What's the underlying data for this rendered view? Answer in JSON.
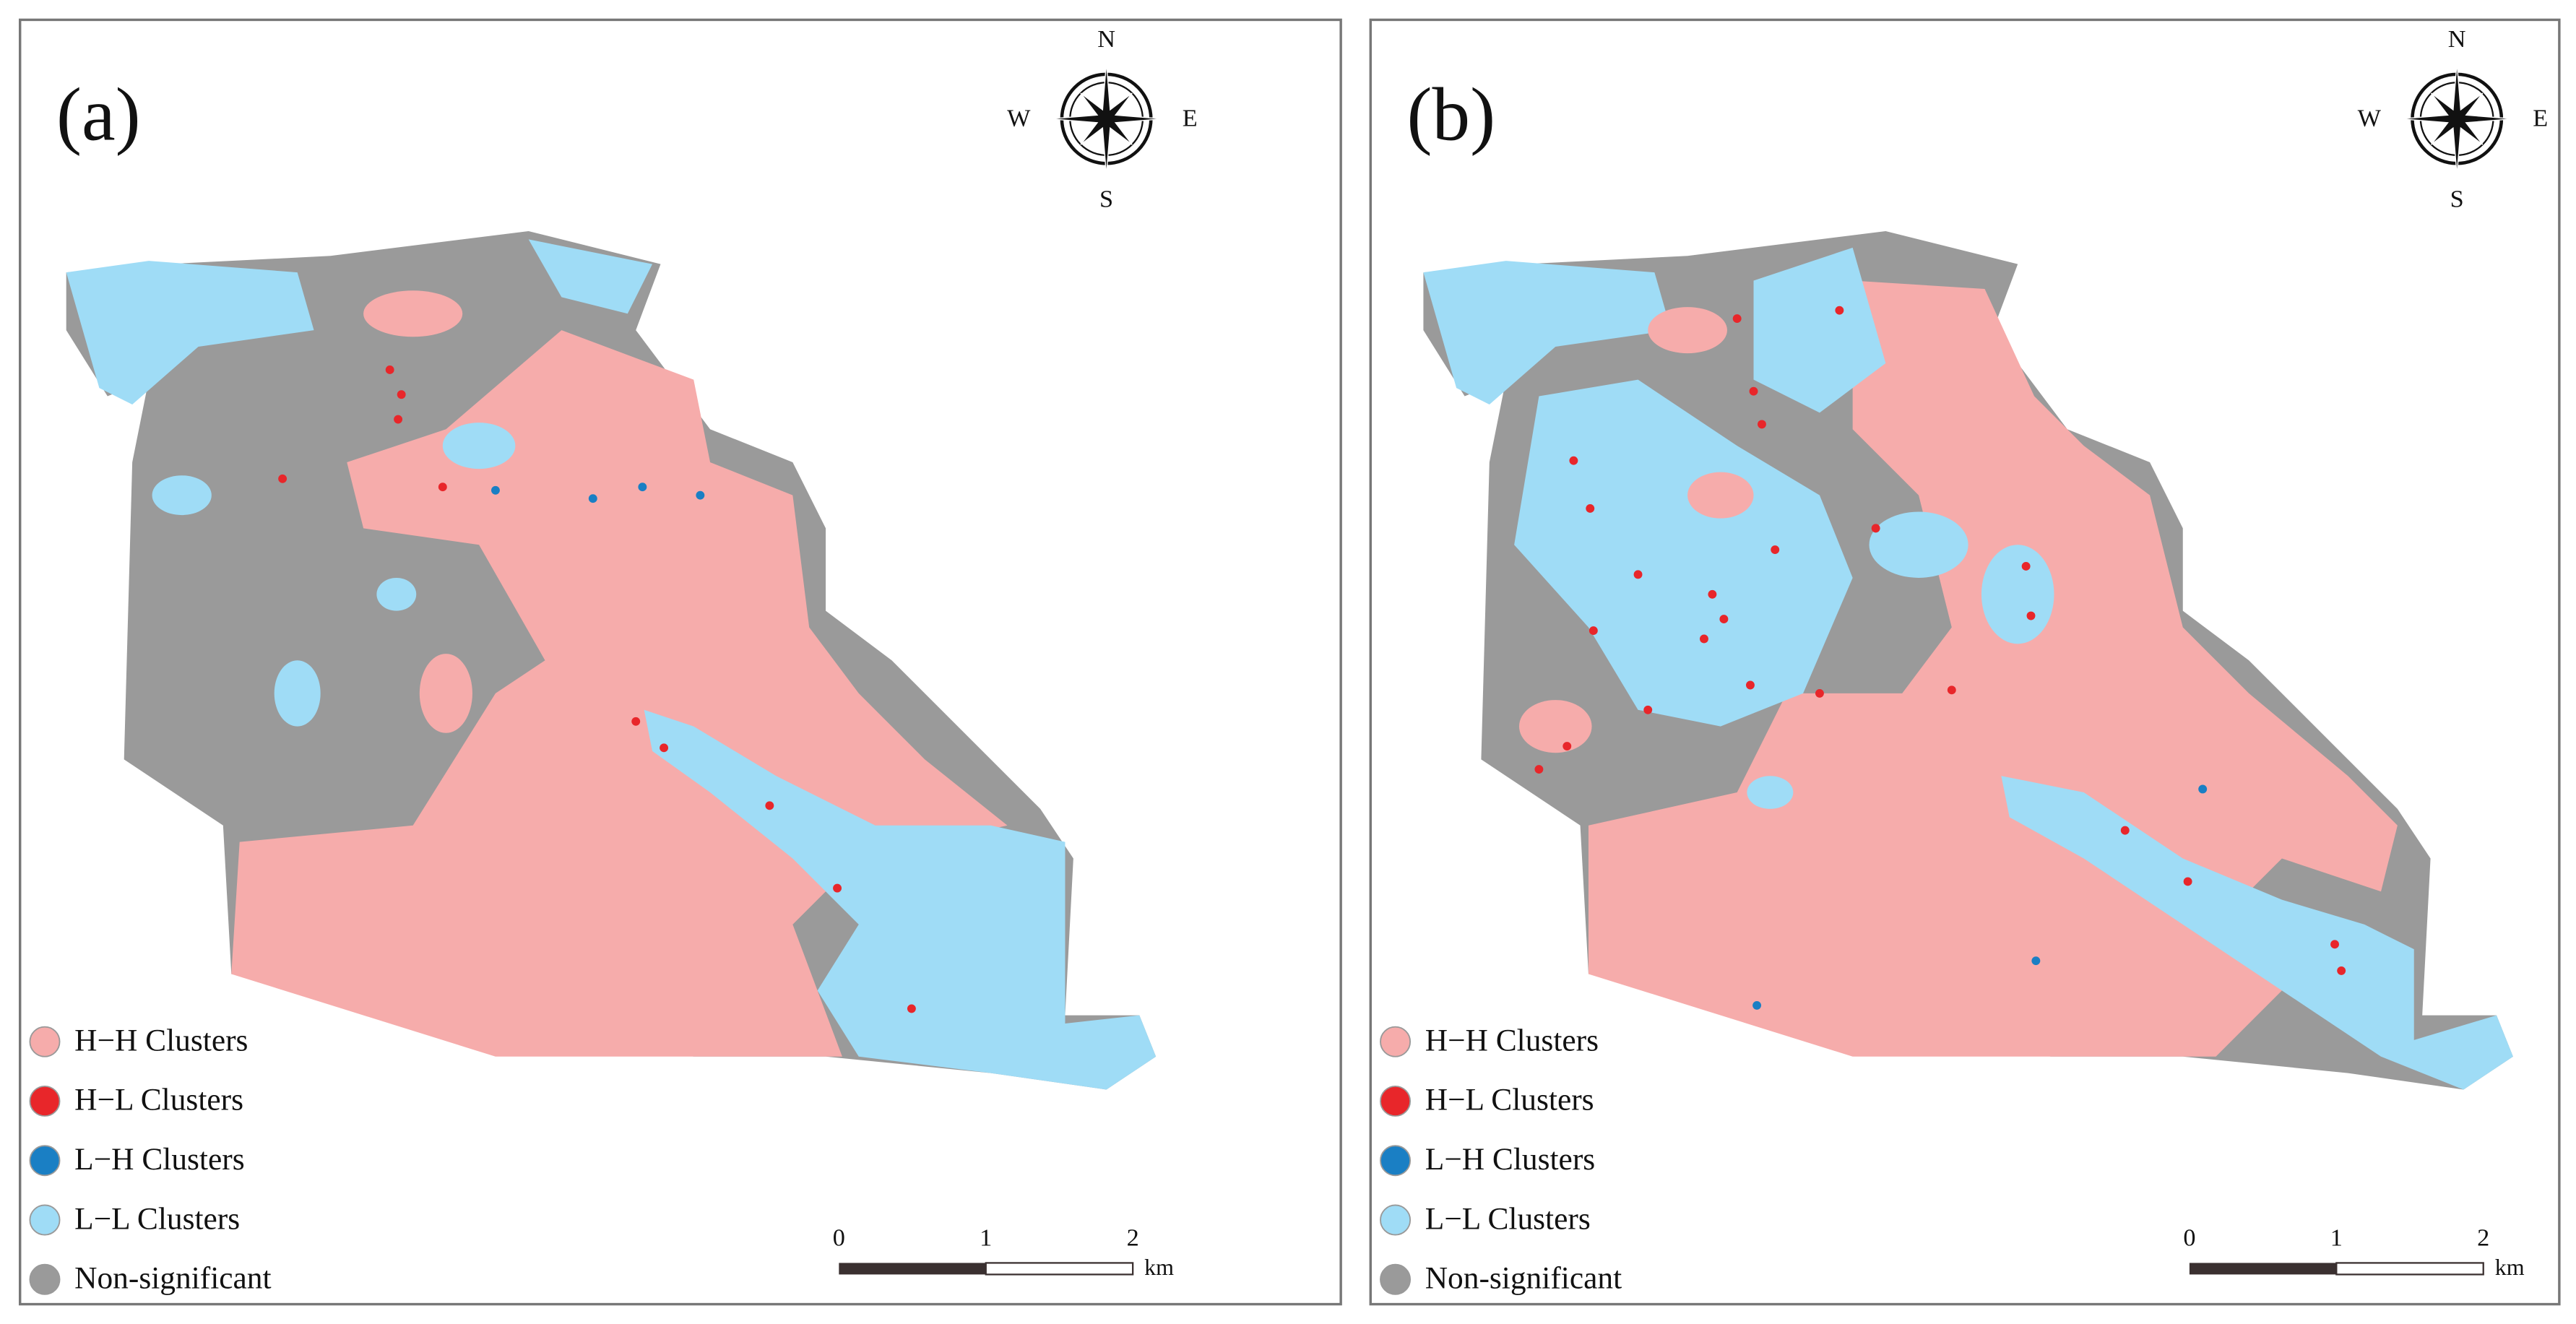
{
  "panels": [
    {
      "label": "(a)",
      "compass": {
        "north": "N",
        "east": "E",
        "south": "S",
        "west": "W"
      },
      "legend": [
        "H−H Clusters",
        "H−L Clusters",
        "L−H Clusters",
        "L−L Clusters",
        "Non-significant"
      ],
      "scale_bar": {
        "ticks": [
          "0",
          "1",
          "2"
        ],
        "unit": "km"
      }
    },
    {
      "label": "(b)",
      "compass": {
        "north": "N",
        "east": "E",
        "south": "S",
        "west": "W"
      },
      "legend": [
        "H−H Clusters",
        "H−L Clusters",
        "L−H Clusters",
        "L−L Clusters",
        "Non-significant"
      ],
      "scale_bar": {
        "ticks": [
          "0",
          "1",
          "2"
        ],
        "unit": "km"
      }
    }
  ]
}
